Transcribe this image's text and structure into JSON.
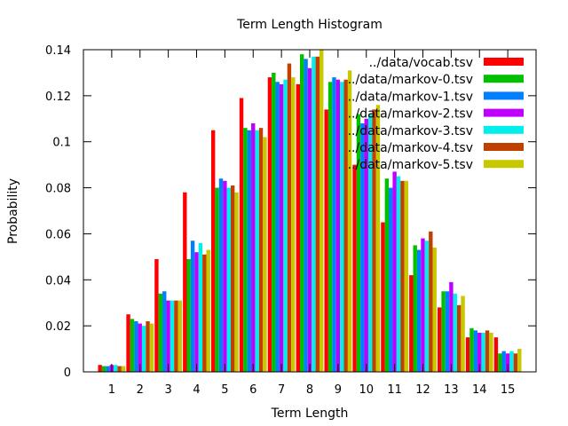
{
  "chart_data": {
    "type": "bar",
    "title": "Term Length Histogram",
    "xlabel": "Term Length",
    "ylabel": "Probability",
    "ylim": [
      0,
      0.14
    ],
    "yticks": [
      "0",
      "0.02",
      "0.04",
      "0.06",
      "0.08",
      "0.1",
      "0.12",
      "0.14"
    ],
    "ytick_values": [
      0,
      0.02,
      0.04,
      0.06,
      0.08,
      0.1,
      0.12,
      0.14
    ],
    "categories": [
      "1",
      "2",
      "3",
      "4",
      "5",
      "6",
      "7",
      "8",
      "9",
      "10",
      "11",
      "12",
      "13",
      "14",
      "15"
    ],
    "legend_position": "top-right",
    "grid": false,
    "series": [
      {
        "name": "../data/vocab.tsv",
        "color": "#ff0000",
        "values": [
          0.003,
          0.025,
          0.049,
          0.078,
          0.105,
          0.119,
          0.128,
          0.125,
          0.114,
          0.09,
          0.065,
          0.042,
          0.028,
          0.015,
          0.015
        ]
      },
      {
        "name": "../data/markov-0.tsv",
        "color": "#00c000",
        "values": [
          0.0025,
          0.023,
          0.034,
          0.049,
          0.08,
          0.106,
          0.13,
          0.138,
          0.126,
          0.112,
          0.084,
          0.055,
          0.035,
          0.019,
          0.008
        ]
      },
      {
        "name": "../data/markov-1.tsv",
        "color": "#0080ff",
        "values": [
          0.0025,
          0.022,
          0.035,
          0.057,
          0.084,
          0.105,
          0.126,
          0.136,
          0.128,
          0.108,
          0.08,
          0.053,
          0.035,
          0.018,
          0.009
        ]
      },
      {
        "name": "../data/markov-2.tsv",
        "color": "#c000ff",
        "values": [
          0.003,
          0.021,
          0.031,
          0.052,
          0.083,
          0.108,
          0.125,
          0.132,
          0.127,
          0.11,
          0.087,
          0.058,
          0.039,
          0.017,
          0.008
        ]
      },
      {
        "name": "../data/markov-3.tsv",
        "color": "#00eeee",
        "values": [
          0.003,
          0.02,
          0.031,
          0.056,
          0.08,
          0.105,
          0.127,
          0.137,
          0.126,
          0.112,
          0.085,
          0.057,
          0.034,
          0.017,
          0.009
        ]
      },
      {
        "name": "../data/markov-4.tsv",
        "color": "#c04000",
        "values": [
          0.0025,
          0.022,
          0.031,
          0.051,
          0.081,
          0.106,
          0.134,
          0.137,
          0.127,
          0.114,
          0.083,
          0.061,
          0.029,
          0.018,
          0.008
        ]
      },
      {
        "name": "../data/markov-5.tsv",
        "color": "#c8c800",
        "values": [
          0.0025,
          0.021,
          0.031,
          0.053,
          0.078,
          0.102,
          0.128,
          0.14,
          0.131,
          0.116,
          0.083,
          0.054,
          0.033,
          0.017,
          0.01
        ]
      }
    ]
  }
}
